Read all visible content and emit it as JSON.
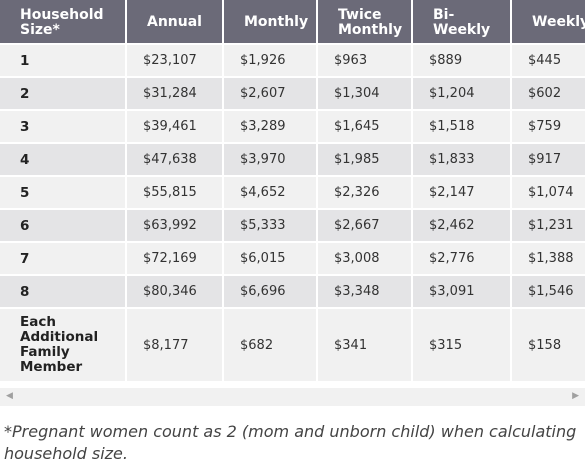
{
  "table": {
    "header": [
      "Household Size*",
      "Annual",
      "Monthly",
      "Twice Monthly",
      "Bi-Weekly",
      "Weekly"
    ],
    "rows": [
      [
        "1",
        "$23,107",
        "$1,926",
        "$963",
        "$889",
        "$445"
      ],
      [
        "2",
        "$31,284",
        "$2,607",
        "$1,304",
        "$1,204",
        "$602"
      ],
      [
        "3",
        "$39,461",
        "$3,289",
        "$1,645",
        "$1,518",
        "$759"
      ],
      [
        "4",
        "$47,638",
        "$3,970",
        "$1,985",
        "$1,833",
        "$917"
      ],
      [
        "5",
        "$55,815",
        "$4,652",
        "$2,326",
        "$2,147",
        "$1,074"
      ],
      [
        "6",
        "$63,992",
        "$5,333",
        "$2,667",
        "$2,462",
        "$1,231"
      ],
      [
        "7",
        "$72,169",
        "$6,015",
        "$3,008",
        "$2,776",
        "$1,388"
      ],
      [
        "8",
        "$80,346",
        "$6,696",
        "$3,348",
        "$3,091",
        "$1,546"
      ],
      [
        "Each Additional Family Member",
        "$8,177",
        "$682",
        "$341",
        "$315",
        "$158"
      ]
    ]
  },
  "footnote": "*Pregnant women count as 2 (mom and unborn child) when calculating household size."
}
